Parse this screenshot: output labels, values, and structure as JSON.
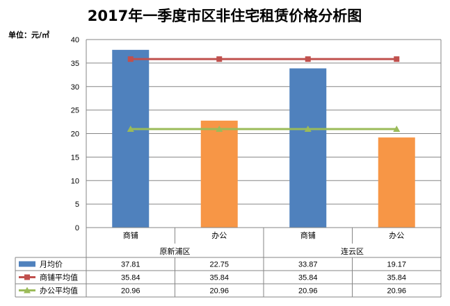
{
  "chart_data": {
    "type": "bar",
    "title": "2017年一季度市区非住宅租赁价格分析图",
    "unit_label": "单位：元/㎡",
    "categories": [
      "商铺",
      "办公",
      "商铺",
      "办公"
    ],
    "groups": [
      {
        "label": "原新浦区",
        "span": [
          0,
          1
        ]
      },
      {
        "label": "连云区",
        "span": [
          2,
          3
        ]
      }
    ],
    "ylim": [
      0,
      40
    ],
    "yticks": [
      0,
      5,
      10,
      15,
      20,
      25,
      30,
      35,
      40
    ],
    "grid": true,
    "legend": "data-table-left",
    "series": [
      {
        "name": "月均价",
        "kind": "bar",
        "values": [
          37.81,
          22.75,
          33.87,
          19.17
        ],
        "labels": [
          "37.81",
          "22.75",
          "33.87",
          "19.17"
        ],
        "colors": [
          "#4f81bd",
          "#f79646",
          "#4f81bd",
          "#f79646"
        ]
      },
      {
        "name": "商铺平均值",
        "kind": "line",
        "marker": "square",
        "color": "#c0504d",
        "values": [
          35.84,
          35.84,
          35.84,
          35.84
        ],
        "labels": [
          "35.84",
          "35.84",
          "35.84",
          "35.84"
        ]
      },
      {
        "name": "办公平均值",
        "kind": "line",
        "marker": "triangle",
        "color": "#9bbb59",
        "values": [
          20.96,
          20.96,
          20.96,
          20.96
        ],
        "labels": [
          "20.96",
          "20.96",
          "20.96",
          "20.96"
        ]
      }
    ]
  }
}
